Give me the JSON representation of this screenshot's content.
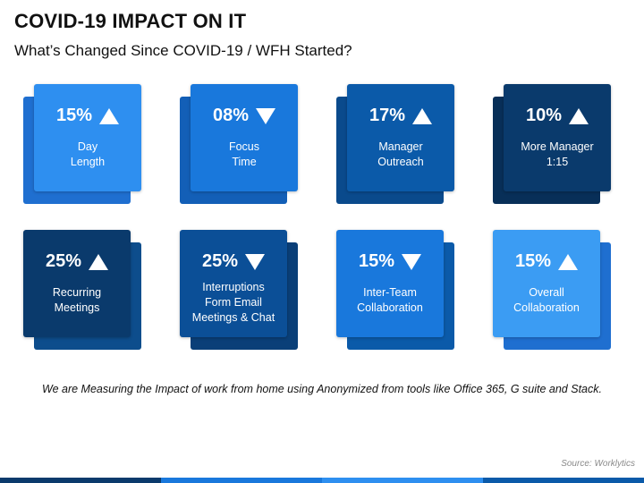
{
  "title": "COVID-19 IMPACT ON IT",
  "subtitle": "What’s Changed Since COVID-19 / WFH Started?",
  "cards": [
    {
      "percent": "15%",
      "direction": "up",
      "label": "Day\nLength",
      "front_color": "#2e8ff0",
      "back_color": "#1f6fd0"
    },
    {
      "percent": "08%",
      "direction": "down",
      "label": "Focus\nTime",
      "front_color": "#1978dc",
      "back_color": "#135fb7"
    },
    {
      "percent": "17%",
      "direction": "up",
      "label": "Manager\nOutreach",
      "front_color": "#0b5aa9",
      "back_color": "#0a4a8c"
    },
    {
      "percent": "10%",
      "direction": "up",
      "label": "More Manager\n1:15",
      "front_color": "#0a3a6c",
      "back_color": "#082f58"
    },
    {
      "percent": "25%",
      "direction": "up",
      "label": "Recurring\nMeetings",
      "front_color": "#0a3a6c",
      "back_color": "#0d4d8c"
    },
    {
      "percent": "25%",
      "direction": "down",
      "label": "Interruptions\nForm Email\nMeetings & Chat",
      "front_color": "#0b4f97",
      "back_color": "#0a3f78"
    },
    {
      "percent": "15%",
      "direction": "down",
      "label": "Inter-Team\nCollaboration",
      "front_color": "#1978dc",
      "back_color": "#0b5aa9"
    },
    {
      "percent": "15%",
      "direction": "up",
      "label": "Overall\nCollaboration",
      "front_color": "#3b9cf3",
      "back_color": "#1f6fd0"
    }
  ],
  "note": "We are Measuring the Impact of work from home using Anonymized from tools like Office 365, G suite and Stack.",
  "source": "Source: Worklytics",
  "bar_colors": [
    "#0a3a6c",
    "#1978dc",
    "#2e8ff0",
    "#0b5aa9"
  ]
}
